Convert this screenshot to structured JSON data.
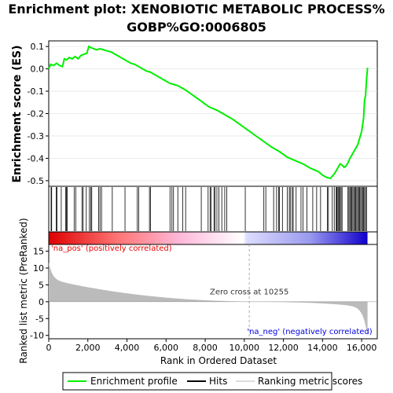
{
  "chart_data": {
    "type": "line",
    "title_line1": "Enrichment plot: XENOBIOTIC METABOLIC PROCESS%",
    "title_line2": "GOBP%GO:0006805",
    "ylabel_top": "Enrichment score (ES)",
    "ylabel_bottom": "Ranked list metric (PreRanked)",
    "xlabel": "Rank in Ordered Dataset",
    "xlim": [
      0,
      16800
    ],
    "es_ylim": [
      -0.525,
      0.125
    ],
    "metric_ylim": [
      -11,
      17
    ],
    "x_ticks": [
      "0",
      "2,000",
      "4,000",
      "6,000",
      "8,000",
      "10,000",
      "12,000",
      "14,000",
      "16,000"
    ],
    "es_ticks": [
      "0.1",
      "0.0",
      "-0.1",
      "-0.2",
      "-0.3",
      "-0.4",
      "-0.5"
    ],
    "metric_ticks": [
      "15",
      "10",
      "5",
      "0",
      "-5",
      "-10"
    ],
    "n_genes": 16300,
    "zero_cross_rank": 10255,
    "zero_cross_label": "Zero cross at 10255",
    "pos_label": "'na_pos' (positively correlated)",
    "neg_label": "'na_neg' (negatively correlated)",
    "enrichment_profile": {
      "x": [
        0,
        100,
        250,
        400,
        550,
        700,
        800,
        900,
        1050,
        1200,
        1350,
        1500,
        1650,
        1800,
        1950,
        2050,
        2150,
        2300,
        2450,
        2600,
        2800,
        3000,
        3200,
        3400,
        3600,
        3800,
        4000,
        4200,
        4400,
        4600,
        4800,
        5000,
        5200,
        5400,
        5600,
        5800,
        6000,
        6200,
        6400,
        6600,
        6800,
        7000,
        7400,
        7800,
        8200,
        8600,
        9000,
        9400,
        9800,
        10200,
        10600,
        11000,
        11400,
        11800,
        12200,
        12600,
        13000,
        13400,
        13800,
        14000,
        14200,
        14400,
        14500,
        14600,
        14700,
        14800,
        14900,
        15000,
        15100,
        15200,
        15300,
        15400,
        15500,
        15600,
        15700,
        15800,
        15900,
        16000,
        16100,
        16150,
        16200,
        16250,
        16300
      ],
      "y": [
        0.0,
        0.02,
        0.015,
        0.025,
        0.015,
        0.01,
        0.045,
        0.04,
        0.05,
        0.045,
        0.055,
        0.045,
        0.06,
        0.065,
        0.07,
        0.1,
        0.095,
        0.09,
        0.085,
        0.09,
        0.085,
        0.08,
        0.075,
        0.065,
        0.055,
        0.045,
        0.035,
        0.025,
        0.02,
        0.01,
        0.0,
        -0.01,
        -0.015,
        -0.025,
        -0.035,
        -0.045,
        -0.055,
        -0.065,
        -0.07,
        -0.075,
        -0.085,
        -0.095,
        -0.12,
        -0.145,
        -0.17,
        -0.185,
        -0.205,
        -0.225,
        -0.25,
        -0.275,
        -0.3,
        -0.325,
        -0.35,
        -0.37,
        -0.395,
        -0.41,
        -0.425,
        -0.445,
        -0.46,
        -0.475,
        -0.485,
        -0.49,
        -0.48,
        -0.47,
        -0.455,
        -0.44,
        -0.425,
        -0.43,
        -0.44,
        -0.435,
        -0.42,
        -0.4,
        -0.385,
        -0.37,
        -0.355,
        -0.34,
        -0.31,
        -0.28,
        -0.22,
        -0.14,
        -0.12,
        -0.05,
        0.005
      ]
    },
    "hit_ranks": [
      120,
      150,
      380,
      420,
      640,
      870,
      900,
      950,
      1300,
      1380,
      1700,
      1760,
      1920,
      2080,
      2150,
      2200,
      2550,
      2620,
      2700,
      3250,
      3900,
      4530,
      4600,
      5150,
      5200,
      6200,
      6300,
      6380,
      6600,
      6850,
      7000,
      7800,
      8150,
      8250,
      8300,
      8450,
      8500,
      8600,
      8700,
      8850,
      9000,
      9100,
      10050,
      11000,
      11100,
      11500,
      11650,
      11750,
      11800,
      11950,
      12200,
      12300,
      12350,
      12450,
      12500,
      12650,
      12900,
      13000,
      13200,
      13500,
      13700,
      13900,
      14250,
      14300,
      14500,
      14600,
      14700,
      14720,
      14750,
      14800,
      14850,
      14900,
      14950,
      15000,
      15300,
      15350,
      15400,
      15450,
      15500,
      15550,
      15600,
      15650,
      15700,
      15750,
      15800,
      15850,
      15900,
      15950,
      16000,
      16050,
      16100,
      16150,
      16200,
      16250
    ],
    "legend": [
      "Enrichment profile",
      "Hits",
      "Ranking metric scores"
    ],
    "colors": {
      "profile": "#00ee00",
      "hits": "#000000",
      "metric_fill": "#bbbbbb",
      "pos_text": "#ee0000",
      "neg_text": "#0000dd",
      "band_pos": "#ee0000",
      "band_neg": "#0000dd"
    }
  }
}
